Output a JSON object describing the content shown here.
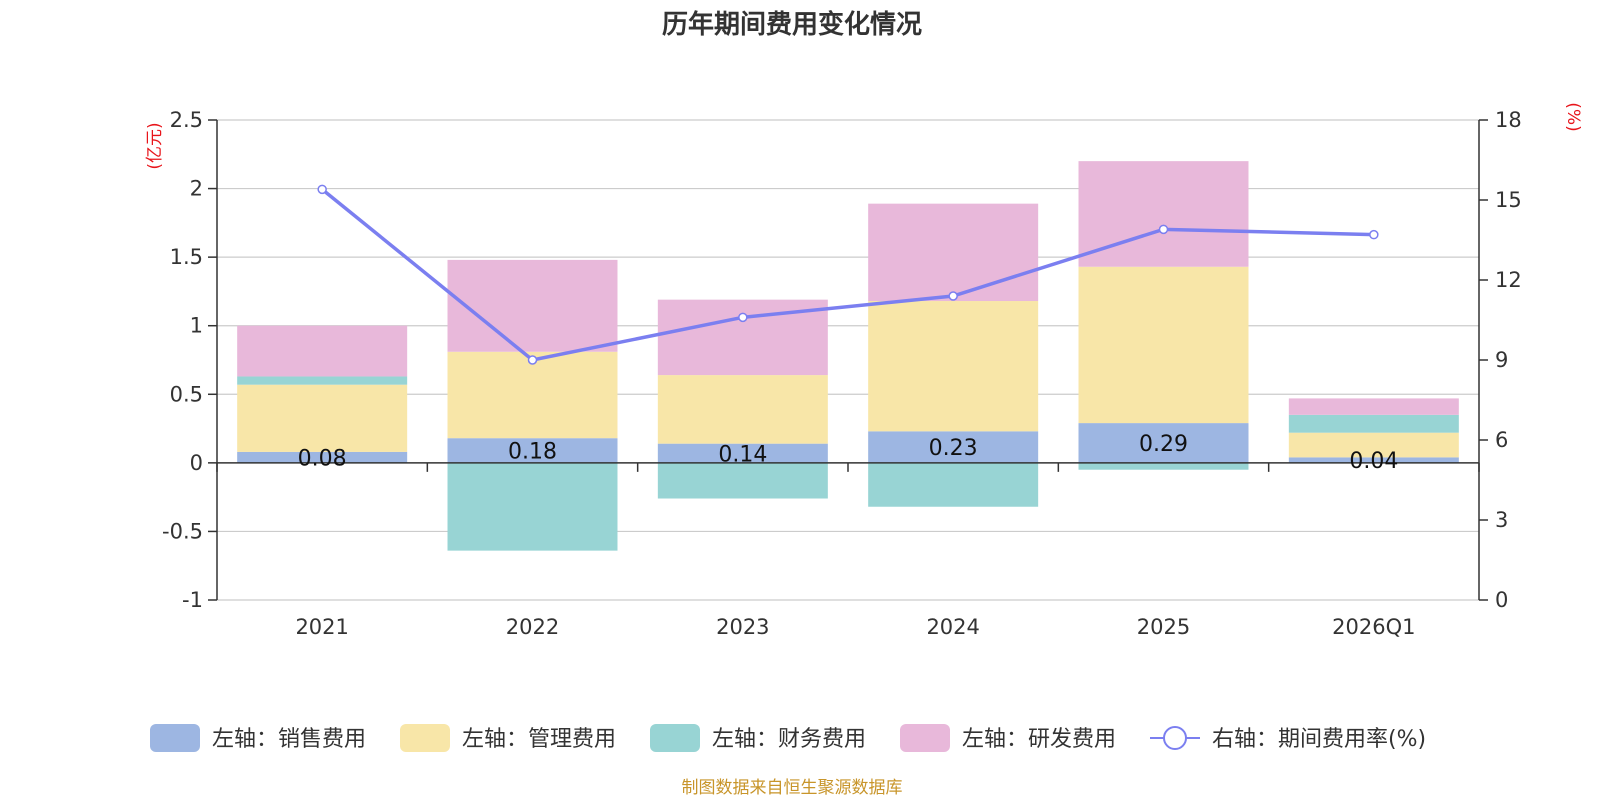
{
  "chart_data": {
    "type": "bar",
    "title": "历年期间费用变化情况",
    "categories": [
      "2021",
      "2022",
      "2023",
      "2024",
      "2025",
      "2026Q1"
    ],
    "stacked": true,
    "left_axis": {
      "unit": "(亿元)",
      "ylim": [
        -1,
        2.5
      ],
      "ticks": [
        -1,
        -0.5,
        0,
        0.5,
        1,
        1.5,
        2,
        2.5
      ],
      "tick_labels": [
        "-1",
        "-0.5",
        "0",
        "0.5",
        "1",
        "1.5",
        "2",
        "2.5"
      ]
    },
    "right_axis": {
      "unit": "(%)",
      "ylim": [
        0,
        18
      ],
      "ticks": [
        0,
        3,
        6,
        9,
        12,
        15,
        18
      ],
      "tick_labels": [
        "0",
        "3",
        "6",
        "9",
        "12",
        "15",
        "18"
      ]
    },
    "series": [
      {
        "name": "左轴：销售费用",
        "axis": "left",
        "type": "bar",
        "color": "#9db6e2",
        "values": [
          0.08,
          0.18,
          0.14,
          0.23,
          0.29,
          0.04
        ],
        "labels": [
          "0.08",
          "0.18",
          "0.14",
          "0.23",
          "0.29",
          "0.04"
        ]
      },
      {
        "name": "左轴：管理费用",
        "axis": "left",
        "type": "bar",
        "color": "#f8e6a8",
        "values": [
          0.49,
          0.63,
          0.5,
          0.95,
          1.14,
          0.18
        ]
      },
      {
        "name": "左轴：财务费用",
        "axis": "left",
        "type": "bar",
        "color": "#98d4d4",
        "values": [
          0.06,
          -0.64,
          -0.26,
          -0.32,
          -0.05,
          0.13
        ]
      },
      {
        "name": "左轴：研发费用",
        "axis": "left",
        "type": "bar",
        "color": "#e8b8da",
        "values": [
          0.37,
          0.67,
          0.55,
          0.71,
          0.77,
          0.12
        ]
      },
      {
        "name": "右轴：期间费用率(%)",
        "axis": "right",
        "type": "line",
        "color": "#7b7ff0",
        "values": [
          15.4,
          9.0,
          10.6,
          11.4,
          13.9,
          13.7
        ]
      }
    ],
    "legend_position": "bottom",
    "grid": true
  },
  "footer": {
    "source": "制图数据来自恒生聚源数据库"
  }
}
